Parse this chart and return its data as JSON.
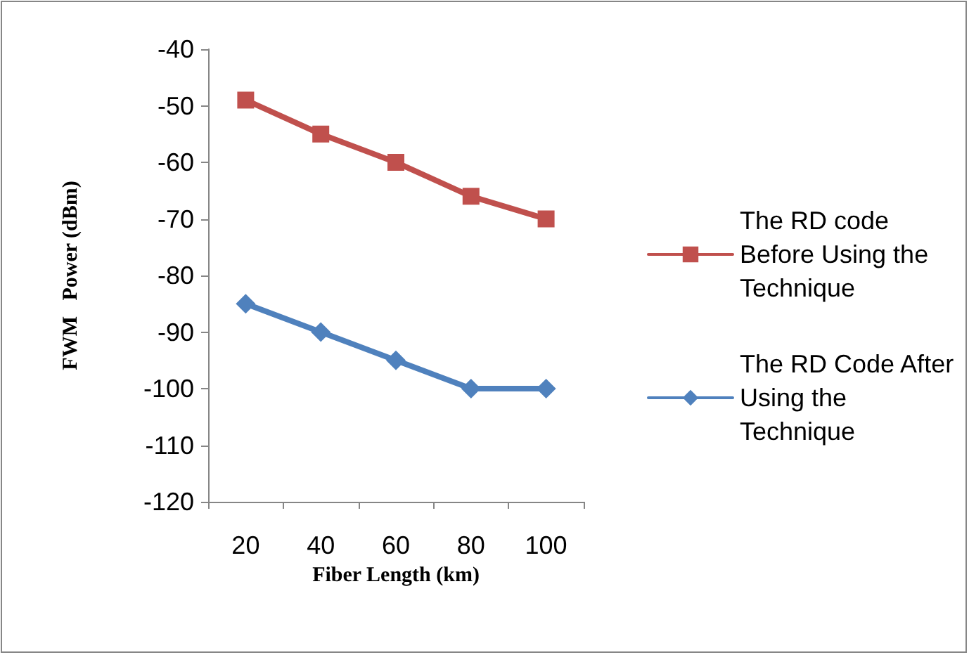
{
  "chart_data": {
    "type": "line",
    "xlabel": "Fiber Length (km)",
    "ylabel": "FWM   Power (dBm)",
    "categories": [
      "20",
      "40",
      "60",
      "80",
      "100"
    ],
    "series": [
      {
        "name": "The RD code Before Using the Technique",
        "color": "#c0504d",
        "marker": "square",
        "values": [
          -49,
          -55,
          -60,
          -66,
          -70
        ]
      },
      {
        "name": "The RD Code After Using the Technique",
        "color": "#4f81bd",
        "marker": "diamond",
        "values": [
          -85,
          -90,
          -95,
          -100,
          -100
        ]
      }
    ],
    "ylim": [
      -120,
      -40
    ],
    "yticks": [
      -120,
      -110,
      -100,
      -90,
      -80,
      -70,
      -60,
      -50,
      -40
    ],
    "grid": false,
    "legend": "right"
  }
}
